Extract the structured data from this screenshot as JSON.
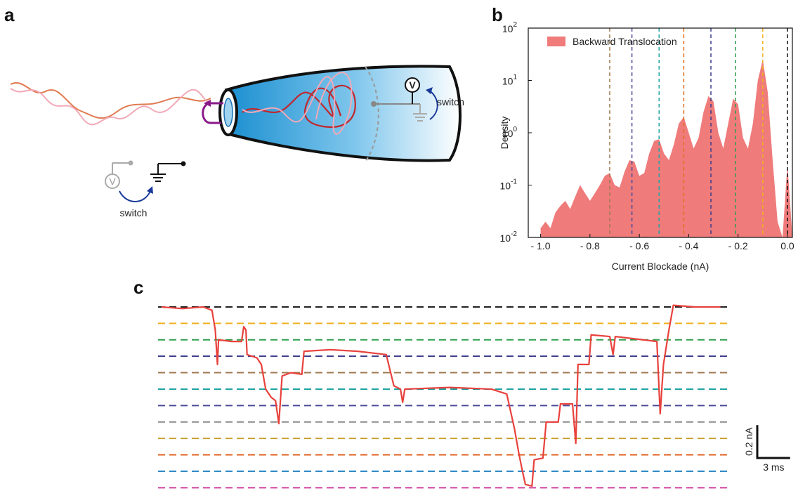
{
  "panel_labels": [
    "a",
    "b",
    "c"
  ],
  "diagram": {
    "switch_labels": [
      "switch",
      "switch"
    ],
    "meter_labels": [
      "V",
      "V"
    ]
  },
  "chart_data": [
    {
      "type": "area",
      "xlabel": "Current Blockade  (nA)",
      "ylabel": "Density",
      "log_y": true,
      "legend": "upper left",
      "xlim": [
        -1.05,
        0.02
      ],
      "ylim": [
        0.01,
        100
      ],
      "xticks": [
        {
          "value": -1,
          "label": "- 1.0"
        },
        {
          "value": -0.8,
          "label": "- 0.8"
        },
        {
          "value": -0.6,
          "label": "- 0.6"
        },
        {
          "value": -0.4,
          "label": "- 0.4"
        },
        {
          "value": -0.2,
          "label": "- 0.2"
        },
        {
          "value": 0,
          "label": "0.0"
        }
      ],
      "yticks": [
        {
          "value": 0.01,
          "label": "10",
          "exponent": "-2"
        },
        {
          "value": 0.1,
          "label": "10",
          "exponent": "-1"
        },
        {
          "value": 1,
          "label": "10",
          "exponent": "0"
        },
        {
          "value": 10,
          "label": "10",
          "exponent": "1"
        },
        {
          "value": 100,
          "label": "10",
          "exponent": "2"
        }
      ],
      "series": [
        {
          "name": "Backward Translocation",
          "color": "#ef7b7b",
          "x": [
            -1.0,
            -0.98,
            -0.96,
            -0.94,
            -0.92,
            -0.9,
            -0.88,
            -0.86,
            -0.84,
            -0.82,
            -0.8,
            -0.78,
            -0.76,
            -0.74,
            -0.72,
            -0.7,
            -0.68,
            -0.66,
            -0.64,
            -0.62,
            -0.6,
            -0.58,
            -0.56,
            -0.54,
            -0.52,
            -0.5,
            -0.48,
            -0.46,
            -0.44,
            -0.42,
            -0.4,
            -0.38,
            -0.36,
            -0.34,
            -0.32,
            -0.3,
            -0.28,
            -0.26,
            -0.24,
            -0.22,
            -0.2,
            -0.18,
            -0.16,
            -0.14,
            -0.12,
            -0.1,
            -0.08,
            -0.06,
            -0.04,
            -0.02,
            0.0,
            0.02
          ],
          "values": [
            0.015,
            0.02,
            0.015,
            0.03,
            0.04,
            0.05,
            0.035,
            0.06,
            0.1,
            0.07,
            0.05,
            0.07,
            0.1,
            0.15,
            0.17,
            0.1,
            0.09,
            0.18,
            0.3,
            0.28,
            0.15,
            0.17,
            0.4,
            0.7,
            0.75,
            0.4,
            0.3,
            0.6,
            1.5,
            2.0,
            1.0,
            0.5,
            0.8,
            2.5,
            5.0,
            4.0,
            1.0,
            0.5,
            1.5,
            4.5,
            3.5,
            0.8,
            0.5,
            1.5,
            10,
            25,
            6,
            0.3,
            0.02,
            0.01,
            0.25,
            0.01
          ]
        }
      ],
      "reference_lines": [
        {
          "x": -0.72,
          "color": "#a07850"
        },
        {
          "x": -0.63,
          "color": "#4a4a9a"
        },
        {
          "x": -0.52,
          "color": "#1fa3a3"
        },
        {
          "x": -0.42,
          "color": "#e07020"
        },
        {
          "x": -0.31,
          "color": "#3a3a8a"
        },
        {
          "x": -0.21,
          "color": "#30a050"
        },
        {
          "x": -0.1,
          "color": "#f0b020"
        },
        {
          "x": 0.0,
          "color": "#111111"
        }
      ]
    },
    {
      "type": "line",
      "xlim": [
        0,
        51
      ],
      "ylim": [
        -1.12,
        0.02
      ],
      "series": [
        {
          "color": "#e8413c",
          "x": [
            0,
            1.9,
            3.8,
            4.6,
            4.9,
            5.1,
            5.2,
            6.4,
            7.3,
            7.5,
            7.7,
            7.8,
            8.7,
            9.1,
            9.5,
            10.0,
            10.4,
            10.7,
            11.0,
            11.8,
            12.8,
            13.0,
            15.4,
            17.9,
            20.5,
            21.2,
            21.8,
            22.0,
            22.2,
            26.3,
            30.1,
            31.5,
            32.2,
            32.6,
            32.9,
            33.2,
            33.8,
            34.0,
            34.8,
            35.1,
            36.2,
            36.4,
            37.5,
            37.8,
            38.0,
            39.0,
            39.2,
            40.9,
            41.2,
            41.4,
            45.2,
            45.5,
            45.8,
            46.3,
            46.7,
            48.7,
            51
          ],
          "values": [
            0,
            -0.01,
            0,
            -0.02,
            -0.14,
            -0.35,
            -0.2,
            -0.21,
            -0.21,
            -0.12,
            -0.14,
            -0.29,
            -0.31,
            -0.35,
            -0.5,
            -0.55,
            -0.57,
            -0.71,
            -0.42,
            -0.4,
            -0.41,
            -0.27,
            -0.26,
            -0.27,
            -0.29,
            -0.48,
            -0.5,
            -0.58,
            -0.5,
            -0.49,
            -0.5,
            -0.53,
            -0.74,
            -0.89,
            -0.99,
            -1.08,
            -1.09,
            -0.93,
            -0.92,
            -0.7,
            -0.7,
            -0.59,
            -0.59,
            -0.83,
            -0.35,
            -0.35,
            -0.17,
            -0.18,
            -0.29,
            -0.18,
            -0.21,
            -0.65,
            -0.35,
            -0.14,
            0.01,
            0,
            0
          ]
        }
      ],
      "levels": [
        {
          "value": 0,
          "color": "#222222"
        },
        {
          "value": -0.1,
          "color": "#f0b020"
        },
        {
          "value": -0.2,
          "color": "#30a050"
        },
        {
          "value": -0.3,
          "color": "#3a3a8a"
        },
        {
          "value": -0.4,
          "color": "#a07850"
        },
        {
          "value": -0.5,
          "color": "#1fa3a3"
        },
        {
          "value": -0.6,
          "color": "#4a4a9a"
        },
        {
          "value": -0.7,
          "color": "#8a8a8a"
        },
        {
          "value": -0.8,
          "color": "#c8a030"
        },
        {
          "value": -0.9,
          "color": "#e06020"
        },
        {
          "value": -1.0,
          "color": "#2080c0"
        },
        {
          "value": -1.1,
          "color": "#d040a0"
        }
      ],
      "scale_bar": {
        "y_value": 0.2,
        "y_label": "0.2 nA",
        "x_value": 3,
        "x_label": "3 ms"
      }
    }
  ]
}
